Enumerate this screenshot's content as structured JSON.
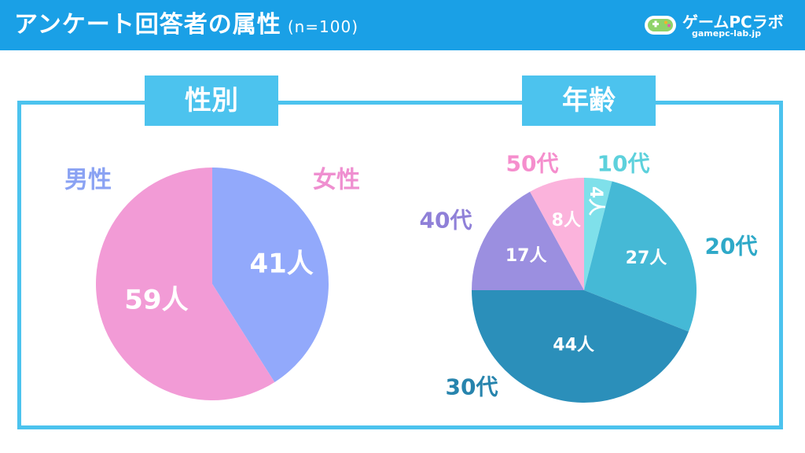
{
  "header": {
    "title": "アンケート回答者の属性",
    "subtitle": "(n=100)",
    "logo_text": "ゲームPCラボ",
    "logo_sub": "gamepc-lab.jp"
  },
  "colors": {
    "header_bg": "#1aa0e6",
    "frame": "#4cc3ee"
  },
  "chart_data": [
    {
      "type": "pie",
      "title": "性別",
      "categories": [
        "男性",
        "女性"
      ],
      "values": [
        41,
        59
      ],
      "data_labels": [
        "41人",
        "59人"
      ],
      "colors": [
        "#92a9fb",
        "#f29bd6"
      ],
      "label_colors": [
        "#8aa2f3",
        "#ef8fd0"
      ]
    },
    {
      "type": "pie",
      "title": "年齢",
      "categories": [
        "10代",
        "20代",
        "30代",
        "40代",
        "50代"
      ],
      "values": [
        4,
        27,
        44,
        17,
        8
      ],
      "data_labels": [
        "4人",
        "27人",
        "44人",
        "17人",
        "8人"
      ],
      "colors": [
        "#7fe0ea",
        "#45b9d6",
        "#2b8fba",
        "#9b8fe0",
        "#fbb3dc"
      ],
      "label_colors": [
        "#5dd1dc",
        "#2ea9c8",
        "#2784ad",
        "#8f80d8",
        "#f58ecd"
      ]
    }
  ]
}
